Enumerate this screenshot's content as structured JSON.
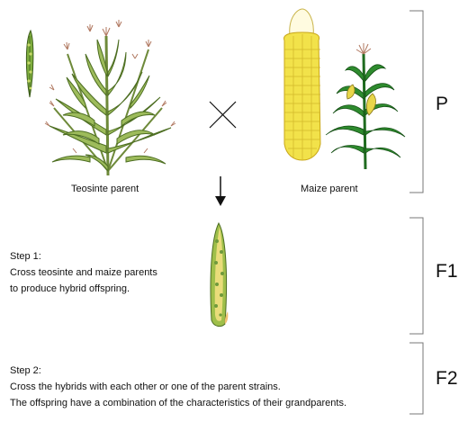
{
  "parents": {
    "teosinte_label": "Teosinte parent",
    "maize_label": "Maize parent"
  },
  "generations": {
    "p": "P",
    "f1": "F1",
    "f2": "F2"
  },
  "step1": {
    "title": "Step 1:",
    "line1": "Cross teosinte and maize parents",
    "line2": "to produce hybrid offspring."
  },
  "step2": {
    "title": "Step 2:",
    "line1": "Cross the hybrids with each other or one of the parent strains.",
    "line2": "The offspring have a combination of the characteristics of their grandparents."
  },
  "icons": {
    "cross": "cross-symbol-icon",
    "arrow": "down-arrow-icon"
  },
  "colors": {
    "plant_green": "#6f9a3c",
    "maize_green": "#2e8b2e",
    "kernel_yellow": "#f2e24a",
    "bracket": "#777777"
  }
}
